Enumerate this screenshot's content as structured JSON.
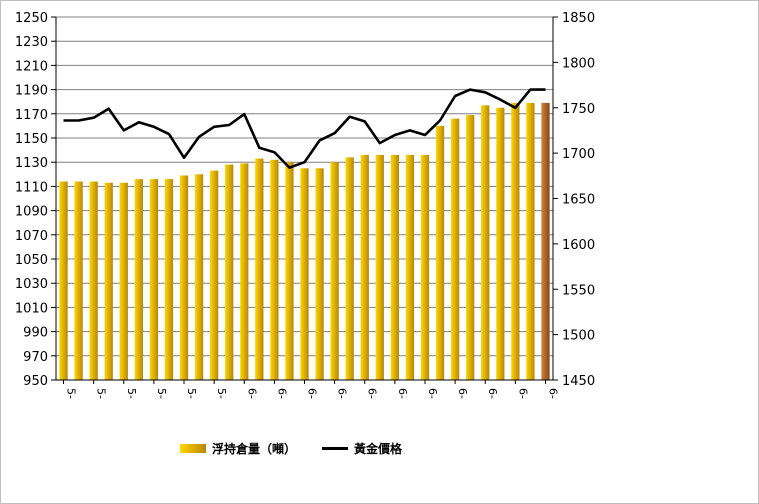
{
  "chart_data": {
    "type": "bar+line",
    "categories": [
      "5-",
      "5-",
      "5-",
      "5-",
      "5-",
      "5-",
      "5-",
      "5-",
      "5-",
      "5-",
      "5-",
      "5-",
      "6-",
      "6-",
      "6-",
      "6-",
      "6-",
      "6-",
      "6-",
      "6-",
      "6-",
      "6-",
      "6-",
      "6-",
      "6-",
      "6-",
      "6-",
      "6-",
      "6-",
      "6-",
      "6-",
      "6-",
      "6-"
    ],
    "x_tick_labels": [
      "5-",
      "5-",
      "5-",
      "5-",
      "5-",
      "5-",
      "6-",
      "6-",
      "6-",
      "6-",
      "6-",
      "6-",
      "6-",
      "6-",
      "6-",
      "6-",
      "6-"
    ],
    "series": [
      {
        "name": "浮持倉量（噸）",
        "kind": "bar",
        "axis": "left",
        "values": [
          1114,
          1114,
          1114,
          1113,
          1113,
          1116,
          1116,
          1116,
          1119,
          1120,
          1123,
          1128,
          1129,
          1133,
          1132,
          1130,
          1125,
          1125,
          1130,
          1134,
          1136,
          1136,
          1136,
          1136,
          1136,
          1160,
          1166,
          1169,
          1177,
          1175,
          1179,
          1179,
          1179
        ]
      },
      {
        "name": "黃金價格",
        "kind": "line",
        "axis": "right",
        "values": [
          1736,
          1736,
          1739,
          1749,
          1725,
          1734,
          1729,
          1721,
          1695,
          1718,
          1729,
          1731,
          1743,
          1706,
          1701,
          1684,
          1690,
          1714,
          1722,
          1740,
          1735,
          1711,
          1720,
          1725,
          1720,
          1736,
          1763,
          1770,
          1767,
          1759,
          1750,
          1770,
          1770
        ]
      }
    ],
    "y_left": {
      "min": 950,
      "max": 1250,
      "ticks": [
        950,
        970,
        990,
        1010,
        1030,
        1050,
        1070,
        1090,
        1110,
        1130,
        1150,
        1170,
        1190,
        1210,
        1230,
        1250
      ]
    },
    "y_right": {
      "min": 1450,
      "max": 1850,
      "ticks": [
        1450,
        1500,
        1550,
        1600,
        1650,
        1700,
        1750,
        1800,
        1850
      ]
    },
    "grid": true,
    "legend": "bottom",
    "colors": {
      "bar_light": "#ffd700",
      "bar_dark": "#b8860b",
      "bar_last": "#a0522d",
      "line": "#000000",
      "grid": "#808080"
    }
  },
  "legend": {
    "bar_label": "浮持倉量（噸）",
    "line_label": "黃金價格"
  }
}
